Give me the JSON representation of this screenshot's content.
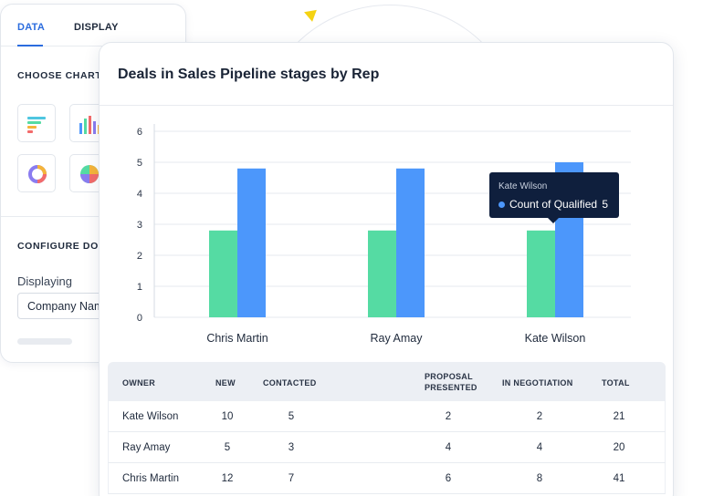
{
  "config": {
    "tabs": [
      {
        "label": "DATA",
        "active": true
      },
      {
        "label": "DISPLAY",
        "active": false
      }
    ],
    "choose_chart_label": "CHOOSE CHART",
    "chart_types": [
      "bar-horizontal-icon",
      "bar-vertical-icon",
      "donut-chart-icon",
      "pie-chart-icon"
    ],
    "configure_label": "CONFIGURE DON",
    "displaying_label": "Displaying",
    "displaying_value": "Company Name"
  },
  "card": {
    "title": "Deals in Sales Pipeline stages by Rep"
  },
  "tooltip": {
    "rep": "Kate Wilson",
    "metric": "Count of Qualified",
    "value": "5"
  },
  "chart_data": {
    "type": "bar",
    "categories": [
      "Chris Martin",
      "Ray Amay",
      "Kate Wilson"
    ],
    "series": [
      {
        "values": [
          2.8,
          2.8,
          2.8
        ],
        "color": "#55dba3"
      },
      {
        "name": "Count of Qualified",
        "values": [
          4.8,
          4.8,
          5
        ],
        "color": "#4c97fb"
      }
    ],
    "yticks": [
      "0",
      "1",
      "2",
      "3",
      "4",
      "5",
      "6"
    ],
    "ylim": [
      0,
      6
    ],
    "grid": true,
    "title": "",
    "xlabel": "",
    "ylabel": ""
  },
  "table": {
    "headers": {
      "owner": "OWNER",
      "new": "NEW",
      "contacted": "CONTACTED",
      "proposal_1": "PROPOSAL",
      "proposal_2": "PRESENTED",
      "negotiation": "IN NEGOTIATION",
      "total": "TOTAL"
    },
    "rows": [
      {
        "owner": "Kate Wilson",
        "new": "10",
        "contacted": "5",
        "proposal": "2",
        "negotiation": "2",
        "total": "21"
      },
      {
        "owner": "Ray Amay",
        "new": "5",
        "contacted": "3",
        "proposal": "4",
        "negotiation": "4",
        "total": "20"
      },
      {
        "owner": "Chris Martin",
        "new": "12",
        "contacted": "7",
        "proposal": "6",
        "negotiation": "8",
        "total": "41"
      }
    ]
  }
}
